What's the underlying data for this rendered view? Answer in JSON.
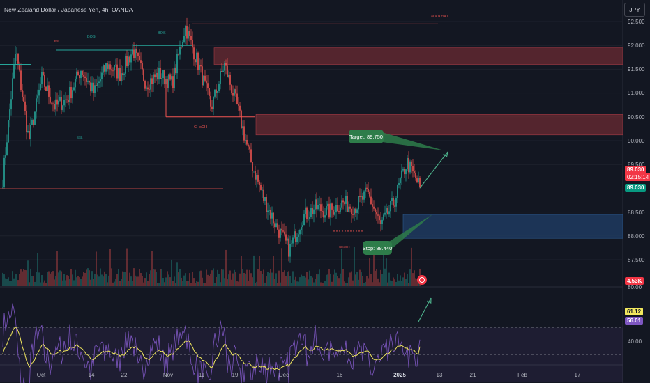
{
  "header": {
    "symbol_title": "New Zealand Dollar / Japanese Yen, 4h, OANDA",
    "currency_button": "JPY"
  },
  "price_axis": {
    "ticks": [
      "92.500",
      "92.000",
      "91.500",
      "91.000",
      "90.500",
      "90.000",
      "89.500",
      "88.500",
      "88.000",
      "87.500"
    ],
    "last_price": "89.030",
    "countdown": "02:15:14",
    "close_tag": "89.030",
    "volume_tag": "4.53K"
  },
  "rsi_axis": {
    "ticks": [
      "80.00",
      "40.00"
    ],
    "rsi_value": "61.12",
    "rsi_ma_value": "56.01"
  },
  "time_axis": {
    "ticks": [
      "Oct",
      "14",
      "22",
      "Nov",
      "11",
      "19",
      "Dec",
      "16",
      "2025",
      "13",
      "21",
      "Feb",
      "17"
    ]
  },
  "annotations": {
    "target_label": "Target: 89.750",
    "stop_label": "Stop: 88.440",
    "strong_high": "Strong High",
    "bos": "BOS",
    "choch": "CHoCH",
    "ssl": "SSL",
    "bsl": "BSL"
  },
  "colors": {
    "background": "#131722",
    "up": "#26a69a",
    "down": "#ef5350",
    "supply_zone": "#6b2b33",
    "demand_zone": "#1e3a5f",
    "rsi_line": "#7e57c2",
    "rsi_ma": "#f2e85e",
    "callout": "#2e7d4a",
    "last_price_bg": "#f23645",
    "close_bg": "#089981",
    "rsi_ma_bg": "#f2e85e",
    "rsi_bg": "#7e57c2"
  },
  "chart_data": {
    "type": "candlestick",
    "instrument": "New Zealand Dollar / Japanese Yen, 4h, OANDA",
    "x_labels": [
      "Oct",
      "14",
      "22",
      "Nov",
      "11",
      "19",
      "Dec",
      "16",
      "2025",
      "13",
      "21",
      "Feb",
      "17"
    ],
    "y_range": [
      87.2,
      92.9
    ],
    "close_path": [
      {
        "date": "Sep 23",
        "close": 89.2
      },
      {
        "date": "Sep 27",
        "close": 91.9
      },
      {
        "date": "Oct 1",
        "close": 90.0
      },
      {
        "date": "Oct 4",
        "close": 91.3
      },
      {
        "date": "Oct 8",
        "close": 90.7
      },
      {
        "date": "Oct 11",
        "close": 90.9
      },
      {
        "date": "Oct 15",
        "close": 91.5
      },
      {
        "date": "Oct 18",
        "close": 91.0
      },
      {
        "date": "Oct 22",
        "close": 91.6
      },
      {
        "date": "Oct 25",
        "close": 91.4
      },
      {
        "date": "Oct 29",
        "close": 91.9
      },
      {
        "date": "Nov 1",
        "close": 91.2
      },
      {
        "date": "Nov 5",
        "close": 91.4
      },
      {
        "date": "Nov 8",
        "close": 91.2
      },
      {
        "date": "Nov 11",
        "close": 92.4
      },
      {
        "date": "Nov 14",
        "close": 91.6
      },
      {
        "date": "Nov 18",
        "close": 90.7
      },
      {
        "date": "Nov 21",
        "close": 91.6
      },
      {
        "date": "Nov 25",
        "close": 90.7
      },
      {
        "date": "Nov 28",
        "close": 89.6
      },
      {
        "date": "Dec 2",
        "close": 88.8
      },
      {
        "date": "Dec 5",
        "close": 88.2
      },
      {
        "date": "Dec 9",
        "close": 87.7
      },
      {
        "date": "Dec 12",
        "close": 88.4
      },
      {
        "date": "Dec 15",
        "close": 88.6
      },
      {
        "date": "Dec 18",
        "close": 88.5
      },
      {
        "date": "Dec 22",
        "close": 88.7
      },
      {
        "date": "Dec 25",
        "close": 88.6
      },
      {
        "date": "Dec 29",
        "close": 88.9
      },
      {
        "date": "Jan 1",
        "close": 88.2
      },
      {
        "date": "Jan 3",
        "close": 88.7
      },
      {
        "date": "Jan 5",
        "close": 89.55
      },
      {
        "date": "Jan 6",
        "close": 89.03
      }
    ],
    "last_price": 89.03,
    "zones": [
      {
        "kind": "supply",
        "from": 91.6,
        "to": 91.95
      },
      {
        "kind": "supply",
        "from": 90.12,
        "to": 90.55
      },
      {
        "kind": "demand",
        "from": 87.95,
        "to": 88.45
      }
    ],
    "levels": [
      {
        "label": "Strong High",
        "value": 92.45
      },
      {
        "label": "Target: 89.750",
        "value": 89.75
      },
      {
        "label": "Stop: 88.440",
        "value": 88.44
      }
    ],
    "rsi": {
      "ticks": [
        80,
        40
      ],
      "value": 61.12,
      "ma": 56.01
    }
  }
}
